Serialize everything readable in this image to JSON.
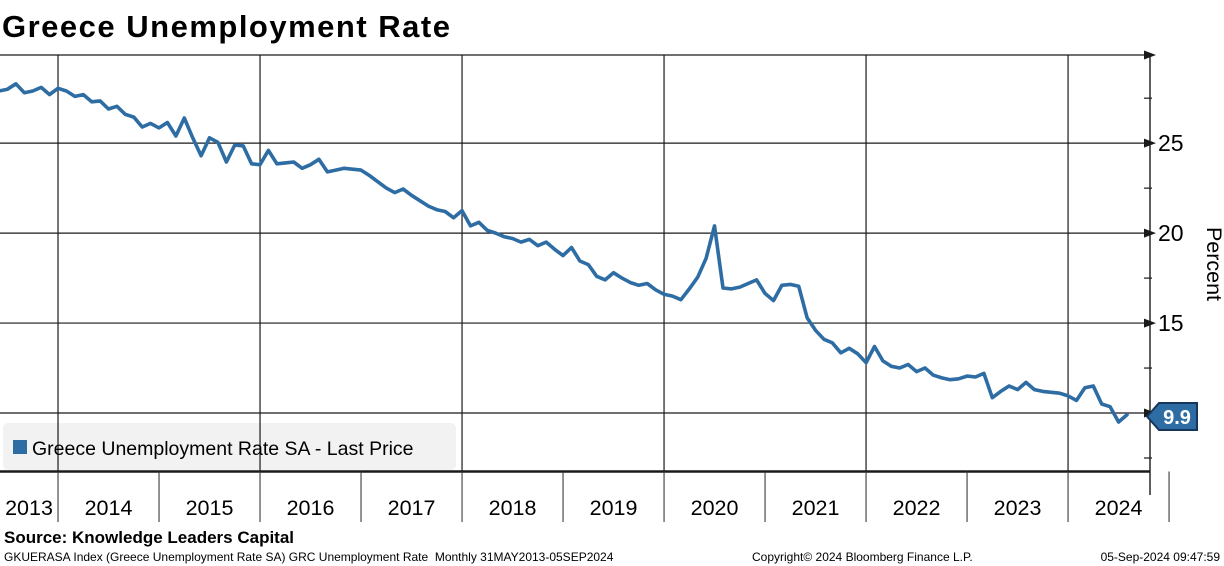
{
  "title": "Greece Unemployment Rate",
  "legend": {
    "label": "Greece Unemployment Rate SA - Last Price",
    "marker_color": "#2e6da4",
    "box_color": "#f2f2f2"
  },
  "last_price_badge": {
    "value": "9.9",
    "fill": "#2e6da4",
    "border": "#16365c"
  },
  "y_axis": {
    "title": "Percent"
  },
  "footer": {
    "source": "Source: Knowledge Leaders Capital",
    "left": "GKUERASA Index (Greece Unemployment Rate SA) GRC Unemployment Rate  Monthly 31MAY2013-05SEP2024",
    "center": "Copyright© 2024 Bloomberg Finance L.P.",
    "right": "05-Sep-2024 09:47:59"
  },
  "chart_data": {
    "type": "line",
    "title": "Greece Unemployment Rate",
    "series_name": "Greece Unemployment Rate SA - Last Price",
    "frequency": "Monthly",
    "period": "31MAY2013-05SEP2024",
    "unit": "Percent",
    "line_color": "#2e6da4",
    "grid": true,
    "legend_position": "bottom-left",
    "x_start": "2013-05",
    "x_end": "2024-07",
    "x_tick_years": [
      "2013",
      "2014",
      "2015",
      "2016",
      "2017",
      "2018",
      "2019",
      "2020",
      "2021",
      "2022",
      "2023",
      "2024"
    ],
    "x_gridline_years": [
      2014,
      2016,
      2018,
      2020,
      2022,
      2024
    ],
    "ylim": [
      6.75,
      29.9
    ],
    "y_major_gridlines": [
      25,
      20,
      15,
      10
    ],
    "y_labeled_ticks": [
      25,
      20,
      15
    ],
    "y_minor_ticks": [
      27.5,
      22.5,
      17.5,
      12.5,
      7.5
    ],
    "last_value": 9.9,
    "values": [
      27.9,
      28.0,
      28.3,
      27.8,
      27.9,
      28.1,
      27.7,
      28.05,
      27.9,
      27.6,
      27.7,
      27.3,
      27.35,
      26.9,
      27.05,
      26.6,
      26.45,
      25.9,
      26.1,
      25.85,
      26.15,
      25.4,
      26.4,
      25.3,
      24.3,
      25.3,
      25.05,
      23.95,
      24.9,
      24.85,
      23.85,
      23.8,
      24.6,
      23.85,
      23.9,
      23.95,
      23.6,
      23.8,
      24.1,
      23.4,
      23.5,
      23.6,
      23.55,
      23.5,
      23.2,
      22.85,
      22.5,
      22.25,
      22.45,
      22.1,
      21.8,
      21.5,
      21.3,
      21.2,
      20.85,
      21.25,
      20.4,
      20.6,
      20.15,
      20.0,
      19.8,
      19.7,
      19.5,
      19.65,
      19.3,
      19.5,
      19.1,
      18.75,
      19.2,
      18.45,
      18.25,
      17.6,
      17.4,
      17.8,
      17.5,
      17.25,
      17.1,
      17.2,
      16.85,
      16.6,
      16.5,
      16.3,
      16.9,
      17.55,
      18.6,
      20.4,
      16.95,
      16.9,
      17.0,
      17.2,
      17.4,
      16.65,
      16.25,
      17.1,
      17.15,
      17.05,
      15.3,
      14.6,
      14.1,
      13.9,
      13.35,
      13.6,
      13.3,
      12.8,
      13.7,
      12.9,
      12.6,
      12.5,
      12.7,
      12.3,
      12.5,
      12.1,
      11.95,
      11.85,
      11.9,
      12.05,
      12.0,
      12.2,
      10.85,
      11.2,
      11.5,
      11.3,
      11.7,
      11.3,
      11.2,
      11.15,
      11.1,
      10.95,
      10.7,
      11.4,
      11.5,
      10.5,
      10.35,
      9.5,
      9.9
    ]
  }
}
